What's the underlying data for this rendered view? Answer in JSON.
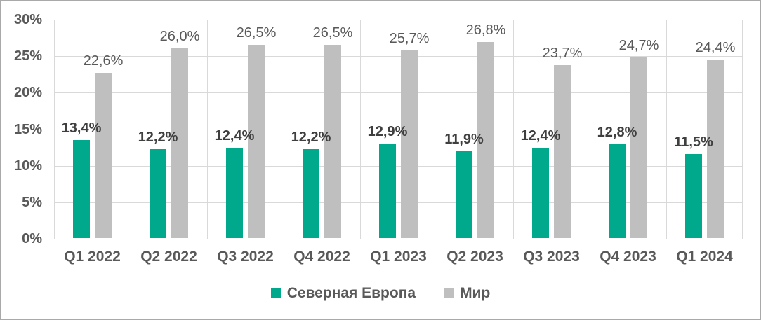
{
  "chart_data": {
    "type": "bar",
    "title": "",
    "categories": [
      "Q1 2022",
      "Q2 2022",
      "Q3 2022",
      "Q4 2022",
      "Q1 2023",
      "Q2 2023",
      "Q3 2023",
      "Q4 2023",
      "Q1 2024"
    ],
    "series": [
      {
        "name": "Северная Европа",
        "color": "#00A88C",
        "values": [
          13.4,
          12.2,
          12.4,
          12.2,
          12.9,
          11.9,
          12.4,
          12.8,
          11.5
        ],
        "labels": [
          "13,4%",
          "12,2%",
          "12,4%",
          "12,2%",
          "12,9%",
          "11,9%",
          "12,4%",
          "12,8%",
          "11,5%"
        ],
        "label_weight": "bold"
      },
      {
        "name": "Мир",
        "color": "#BFBFBF",
        "values": [
          22.6,
          26.0,
          26.5,
          26.5,
          25.7,
          26.8,
          23.7,
          24.7,
          24.4
        ],
        "labels": [
          "22,6%",
          "26,0%",
          "26,5%",
          "26,5%",
          "25,7%",
          "26,8%",
          "23,7%",
          "24,7%",
          "24,4%"
        ],
        "label_weight": "regular"
      }
    ],
    "ylim": [
      0,
      30
    ],
    "ytick_step": 5,
    "ytick_labels": [
      "0%",
      "5%",
      "10%",
      "15%",
      "20%",
      "25%",
      "30%"
    ],
    "grid": true,
    "legend_position": "bottom"
  },
  "style": {
    "axis_text_color": "#595959",
    "ne_label_color": "#3F3F3F",
    "gridline_color": "#D9D9D9",
    "frame_border_color": "#A9A9A9",
    "background_color": "#FFFFFF"
  }
}
